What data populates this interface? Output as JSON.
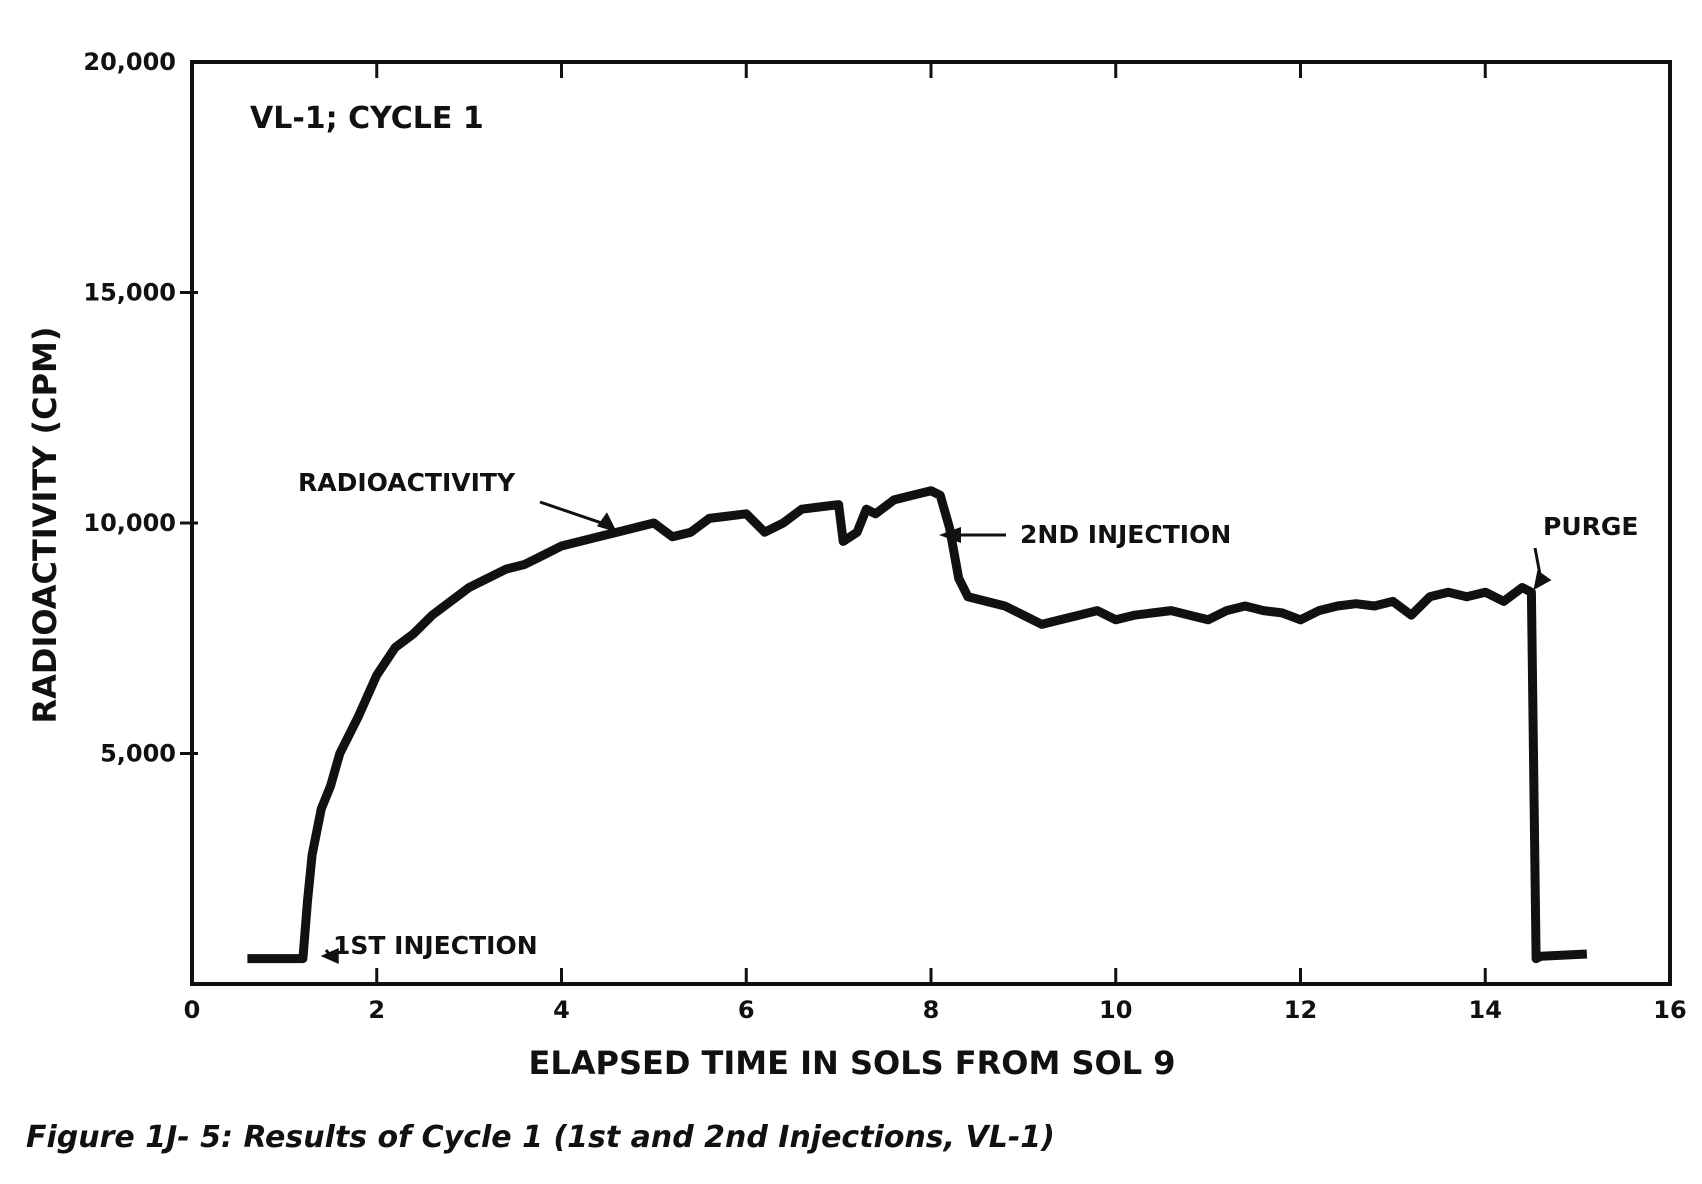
{
  "chart_data": {
    "type": "line",
    "title": "VL-1; CYCLE 1",
    "xlabel": "ELAPSED TIME IN SOLS FROM SOL 9",
    "ylabel": "RADIOACTIVITY (CPM)",
    "xlim": [
      0,
      16
    ],
    "ylim": [
      0,
      20000
    ],
    "x_ticks": [
      0,
      2,
      4,
      6,
      8,
      10,
      12,
      14,
      16
    ],
    "x_tick_labels": [
      "0",
      "2",
      "4",
      "6",
      "8",
      "10",
      "12",
      "14",
      "16"
    ],
    "y_ticks": [
      5000,
      10000,
      15000,
      20000
    ],
    "y_tick_labels": [
      "5,000",
      "10,000",
      "15,000",
      "20,000"
    ],
    "grid": false,
    "color": "#111111",
    "series": [
      {
        "x": [
          0.6,
          1.2,
          1.25,
          1.3,
          1.4,
          1.5,
          1.6,
          1.8,
          2.0,
          2.2,
          2.4,
          2.6,
          2.8,
          3.0,
          3.2,
          3.4,
          3.6,
          3.8,
          4.0,
          4.2,
          4.4,
          4.6,
          4.8,
          5.0,
          5.2,
          5.4,
          5.6,
          5.8,
          6.0,
          6.2,
          6.4,
          6.6,
          6.8,
          7.0,
          7.05,
          7.2,
          7.3,
          7.4,
          7.6,
          7.8,
          8.0,
          8.1,
          8.2,
          8.3,
          8.4,
          8.6,
          8.8,
          9.0,
          9.2,
          9.4,
          9.6,
          9.8,
          10.0,
          10.2,
          10.4,
          10.6,
          10.8,
          11.0,
          11.2,
          11.4,
          11.6,
          11.8,
          12.0,
          12.2,
          12.4,
          12.6,
          12.8,
          13.0,
          13.2,
          13.4,
          13.6,
          13.8,
          14.0,
          14.2,
          14.4,
          14.5,
          14.55,
          14.6,
          15.1
        ],
        "y": [
          550,
          550,
          1800,
          2800,
          3800,
          4300,
          5000,
          5800,
          6700,
          7300,
          7600,
          8000,
          8300,
          8600,
          8800,
          9000,
          9100,
          9300,
          9500,
          9600,
          9700,
          9800,
          9900,
          10000,
          9700,
          9800,
          10100,
          10150,
          10200,
          9800,
          10000,
          10300,
          10350,
          10400,
          9600,
          9800,
          10300,
          10200,
          10500,
          10600,
          10700,
          10600,
          9900,
          8800,
          8400,
          8300,
          8200,
          8000,
          7800,
          7900,
          8000,
          8100,
          7900,
          8000,
          8050,
          8100,
          8000,
          7900,
          8100,
          8200,
          8100,
          8050,
          7900,
          8100,
          8200,
          8250,
          8200,
          8300,
          8000,
          8400,
          8500,
          8400,
          8500,
          8300,
          8600,
          8500,
          550,
          600,
          650
        ]
      }
    ],
    "annotations": [
      {
        "text": "RADIOACTIVITY",
        "target_x": 4.6,
        "target_y": 9800
      },
      {
        "text": "2ND INJECTION",
        "target_x": 8.0,
        "target_y": 9700
      },
      {
        "text": "PURGE",
        "target_x": 14.5,
        "target_y": 8500
      },
      {
        "text": "1ST INJECTION",
        "target_x": 1.35,
        "target_y": 500
      }
    ]
  },
  "caption": "Figure 1J- 5:  Results of Cycle 1 (1st and 2nd Injections, VL-1)"
}
